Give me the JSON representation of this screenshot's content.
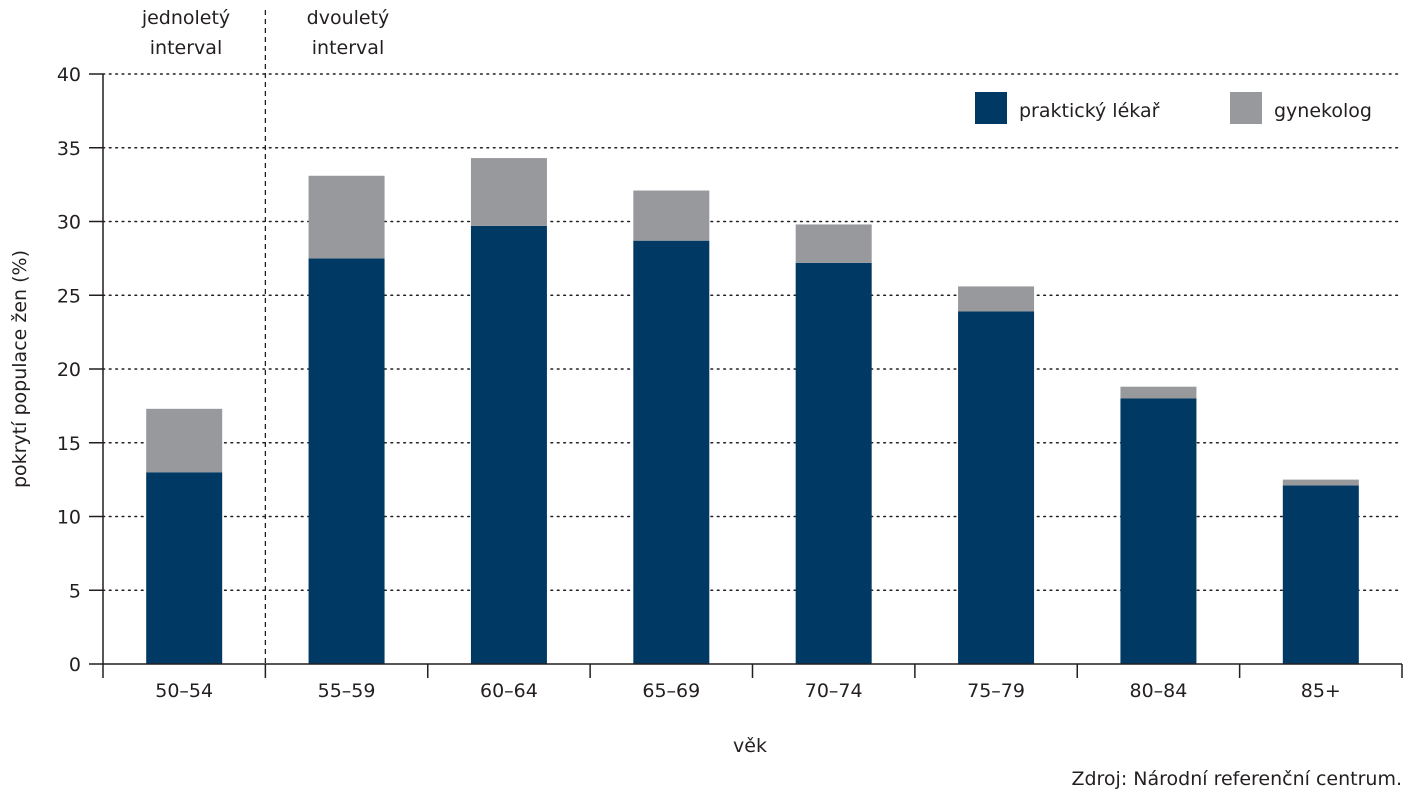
{
  "chart_data": {
    "type": "bar",
    "stacked": true,
    "categories": [
      "50–54",
      "55–59",
      "60–64",
      "65–69",
      "70–74",
      "75–79",
      "80–84",
      "85+"
    ],
    "series": [
      {
        "name": "praktický lékař",
        "color": "#003964",
        "values": [
          13.0,
          27.5,
          29.7,
          28.7,
          27.2,
          23.9,
          18.0,
          12.1
        ]
      },
      {
        "name": "gynekolog",
        "color": "#97999c",
        "values": [
          4.3,
          5.6,
          4.6,
          3.4,
          2.6,
          1.7,
          0.8,
          0.4
        ]
      }
    ],
    "title": "",
    "xlabel": "věk",
    "ylabel": "pokrytí populace žen (%)",
    "ylim": [
      0,
      40
    ],
    "yticks": [
      0,
      5,
      10,
      15,
      20,
      25,
      30,
      35,
      40
    ],
    "grid": true,
    "legend_position": "top-right",
    "annotations": [
      {
        "text_lines": [
          "jednoletý",
          "interval"
        ],
        "region": "50–54"
      },
      {
        "text_lines": [
          "dvouletý",
          "interval"
        ],
        "region": "55–59 až 85+"
      }
    ],
    "source": "Zdroj: Národní referenční centrum."
  }
}
